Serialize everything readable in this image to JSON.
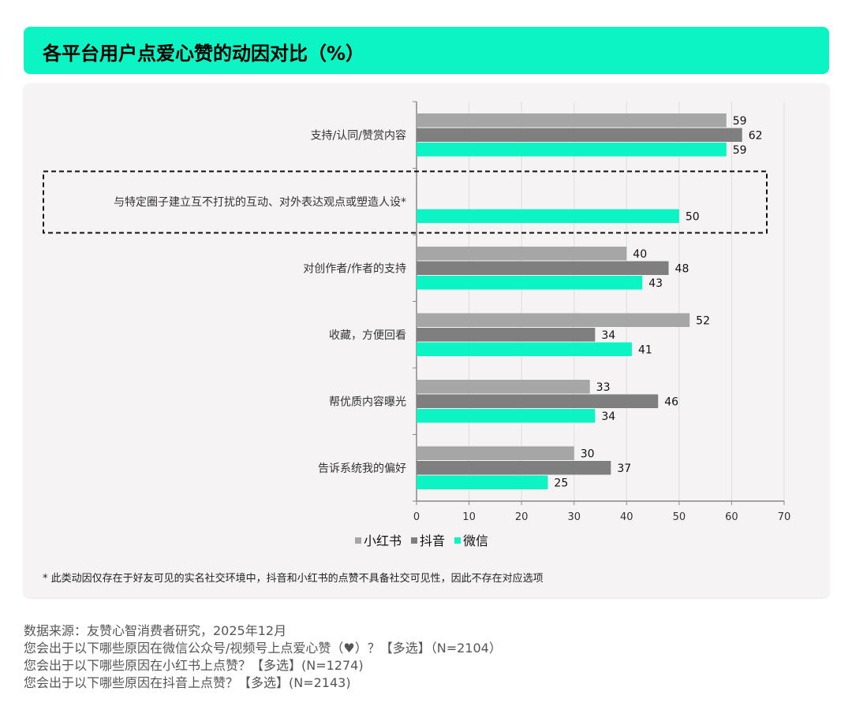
{
  "title": "各平台用户点爱心赞的动因对比（%）",
  "chart_data": {
    "type": "bar",
    "orientation": "horizontal",
    "title": "各平台用户点爱心赞的动因对比（%）",
    "categories": [
      "支持/认同/赞赏内容",
      "与特定圈子建立互不打扰的互动、对外表达观点或塑造人设*",
      "对创作者/作者的支持",
      "收藏，方便回看",
      "帮优质内容曝光",
      "告诉系统我的偏好"
    ],
    "series": [
      {
        "name": "小红书",
        "color": "#a6a6a6",
        "values": [
          59,
          null,
          40,
          52,
          33,
          30
        ]
      },
      {
        "name": "抖音",
        "color": "#7f7f7f",
        "values": [
          62,
          null,
          48,
          34,
          46,
          37
        ]
      },
      {
        "name": "微信",
        "color": "#0af5c3",
        "values": [
          59,
          50,
          43,
          41,
          34,
          25
        ]
      }
    ],
    "xlim": [
      0,
      70
    ],
    "xticks": [
      "0",
      "10",
      "20",
      "30",
      "40",
      "50",
      "60",
      "70"
    ],
    "grid": true,
    "legend": "bottom",
    "highlighted_category": 1
  },
  "note": "* 此类动因仅存在于好友可见的实名社交环境中，抖音和小红书的点赞不具备社交可见性，因此不存在对应选项",
  "footer": [
    "数据来源：友赞心智消费者研究，2025年12月",
    "您会出于以下哪些原因在微信公众号/视频号上点爱心赞（♥）？【多选】（N=2104）",
    "您会出于以下哪些原因在小红书上点赞？【多选】(N=1274)",
    "您会出于以下哪些原因在抖音上点赞？【多选】(N=2143)"
  ]
}
